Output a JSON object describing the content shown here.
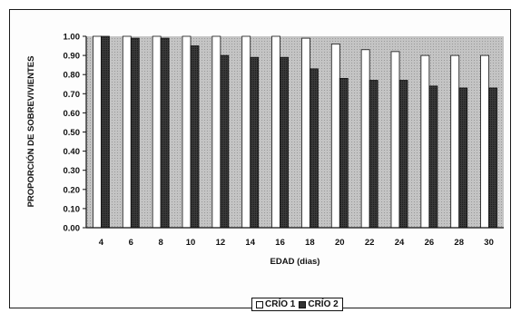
{
  "chart_data": {
    "type": "bar",
    "title": "",
    "xlabel": "EDAD (dias)",
    "ylabel": "PROPORCIÓN DE SOBREVIVIENTES",
    "ylim": [
      0,
      1.0
    ],
    "yticks": [
      "0.00",
      "0.10",
      "0.20",
      "0.30",
      "0.40",
      "0.50",
      "0.60",
      "0.70",
      "0.80",
      "0.90",
      "1.00"
    ],
    "categories": [
      "4",
      "6",
      "8",
      "10",
      "12",
      "14",
      "16",
      "18",
      "20",
      "22",
      "24",
      "26",
      "28",
      "30"
    ],
    "series": [
      {
        "name": "CRÍO 1",
        "color": "#ffffff",
        "values": [
          1.0,
          1.0,
          1.0,
          1.0,
          1.0,
          1.0,
          1.0,
          0.99,
          0.96,
          0.93,
          0.92,
          0.9,
          0.9,
          0.9
        ]
      },
      {
        "name": "CRÍO 2",
        "color": "#333333",
        "values": [
          1.0,
          0.99,
          0.99,
          0.95,
          0.9,
          0.89,
          0.89,
          0.83,
          0.78,
          0.77,
          0.77,
          0.74,
          0.73,
          0.73
        ]
      }
    ],
    "grid": false,
    "legend_position": "bottom-center",
    "plot_background": "#b9b9b9"
  }
}
